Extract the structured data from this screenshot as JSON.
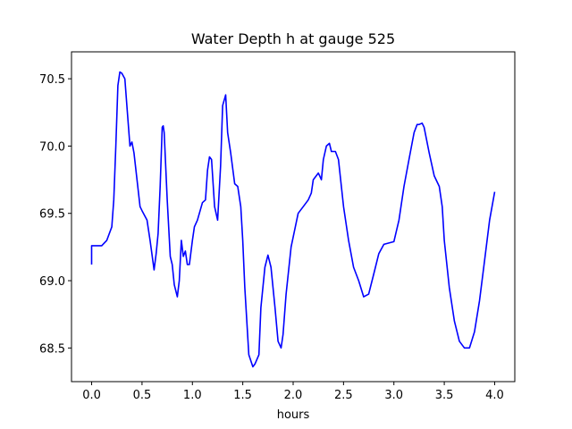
{
  "chart_data": {
    "type": "line",
    "title": "Water Depth h at gauge 525",
    "xlabel": "hours",
    "ylabel": "",
    "xlim": [
      -0.2,
      4.2
    ],
    "ylim": [
      68.25,
      70.7
    ],
    "grid": false,
    "legend": "none",
    "x_ticks": [
      0.0,
      0.5,
      1.0,
      1.5,
      2.0,
      2.5,
      3.0,
      3.5,
      4.0
    ],
    "x_tick_labels": [
      "0.0",
      "0.5",
      "1.0",
      "1.5",
      "2.0",
      "2.5",
      "3.0",
      "3.5",
      "4.0"
    ],
    "y_ticks": [
      68.5,
      69.0,
      69.5,
      70.0,
      70.5
    ],
    "y_tick_labels": [
      "68.5",
      "69.0",
      "69.5",
      "70.0",
      "70.5"
    ],
    "colors": {
      "line": "#0000ff",
      "axes": "#000000"
    },
    "series": [
      {
        "x": [
          0.0,
          0.0,
          0.02,
          0.1,
          0.15,
          0.2,
          0.22,
          0.24,
          0.26,
          0.28,
          0.3,
          0.33,
          0.36,
          0.38,
          0.4,
          0.42,
          0.45,
          0.48,
          0.5,
          0.55,
          0.58,
          0.62,
          0.64,
          0.66,
          0.68,
          0.7,
          0.71,
          0.72,
          0.75,
          0.78,
          0.8,
          0.82,
          0.85,
          0.87,
          0.89,
          0.91,
          0.93,
          0.95,
          0.97,
          1.0,
          1.02,
          1.05,
          1.1,
          1.13,
          1.15,
          1.17,
          1.19,
          1.22,
          1.25,
          1.28,
          1.3,
          1.33,
          1.35,
          1.38,
          1.42,
          1.45,
          1.48,
          1.5,
          1.52,
          1.56,
          1.6,
          1.62,
          1.66,
          1.68,
          1.72,
          1.75,
          1.78,
          1.82,
          1.85,
          1.88,
          1.9,
          1.93,
          1.98,
          2.05,
          2.1,
          2.15,
          2.18,
          2.2,
          2.25,
          2.28,
          2.3,
          2.33,
          2.36,
          2.38,
          2.42,
          2.45,
          2.5,
          2.55,
          2.6,
          2.65,
          2.7,
          2.75,
          2.8,
          2.85,
          2.9,
          2.95,
          3.0,
          3.05,
          3.1,
          3.15,
          3.2,
          3.23,
          3.25,
          3.28,
          3.3,
          3.35,
          3.4,
          3.45,
          3.48,
          3.5,
          3.55,
          3.6,
          3.65,
          3.7,
          3.75,
          3.8,
          3.85,
          3.9,
          3.95,
          4.0
        ],
        "values": [
          69.12,
          69.26,
          69.26,
          69.26,
          69.3,
          69.4,
          69.6,
          70.0,
          70.45,
          70.55,
          70.54,
          70.5,
          70.2,
          70.0,
          70.03,
          69.95,
          69.75,
          69.55,
          69.52,
          69.45,
          69.3,
          69.08,
          69.2,
          69.35,
          69.7,
          70.14,
          70.15,
          70.1,
          69.6,
          69.18,
          69.12,
          68.97,
          68.88,
          69.0,
          69.3,
          69.18,
          69.22,
          69.12,
          69.12,
          69.3,
          69.4,
          69.45,
          69.58,
          69.6,
          69.82,
          69.92,
          69.9,
          69.55,
          69.45,
          69.85,
          70.3,
          70.38,
          70.1,
          69.95,
          69.72,
          69.7,
          69.55,
          69.3,
          68.95,
          68.45,
          68.36,
          68.38,
          68.45,
          68.8,
          69.1,
          69.19,
          69.1,
          68.8,
          68.55,
          68.5,
          68.6,
          68.9,
          69.25,
          69.5,
          69.55,
          69.6,
          69.65,
          69.75,
          69.8,
          69.75,
          69.9,
          70.0,
          70.02,
          69.96,
          69.96,
          69.9,
          69.55,
          69.3,
          69.1,
          69.0,
          68.88,
          68.9,
          69.05,
          69.2,
          69.27,
          69.28,
          69.29,
          69.45,
          69.7,
          69.9,
          70.1,
          70.16,
          70.16,
          70.17,
          70.14,
          69.95,
          69.78,
          69.7,
          69.55,
          69.3,
          68.95,
          68.7,
          68.55,
          68.5,
          68.5,
          68.62,
          68.85,
          69.15,
          69.45,
          69.66
        ]
      }
    ]
  }
}
